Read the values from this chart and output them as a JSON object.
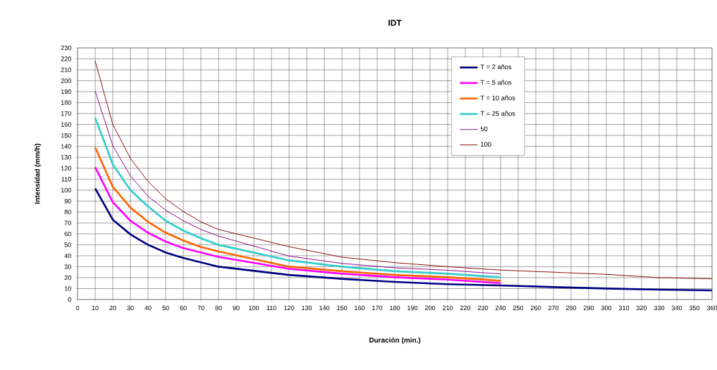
{
  "chart_data": {
    "type": "line",
    "title": "IDT",
    "xlabel": "Duración (min.)",
    "ylabel": "Intensidad (mm/h)",
    "xlim": [
      0,
      360
    ],
    "ylim": [
      0,
      230
    ],
    "xticks": [
      0,
      10,
      20,
      30,
      40,
      50,
      60,
      70,
      80,
      90,
      100,
      110,
      120,
      130,
      140,
      150,
      160,
      170,
      180,
      190,
      200,
      210,
      220,
      230,
      240,
      250,
      260,
      270,
      280,
      290,
      300,
      310,
      320,
      330,
      340,
      350,
      360
    ],
    "yticks": [
      0,
      10,
      20,
      30,
      40,
      50,
      60,
      70,
      80,
      90,
      100,
      110,
      120,
      130,
      140,
      150,
      160,
      170,
      180,
      190,
      200,
      210,
      220,
      230
    ],
    "grid": true,
    "legend": "top right",
    "marker": "none",
    "series": [
      {
        "name": "T = 2 años",
        "color": "#000080",
        "x": [
          10,
          20,
          30,
          40,
          50,
          60,
          70,
          80,
          120,
          150,
          180,
          210,
          240,
          270,
          300,
          330,
          360
        ],
        "values": [
          101.6,
          73,
          59.5,
          50,
          43,
          38,
          34,
          30,
          22.5,
          18.9,
          16.1,
          14,
          12.9,
          11.4,
          10.1,
          9,
          8.4
        ]
      },
      {
        "name": "T = 5 años",
        "color": "#ff00ff",
        "x": [
          10,
          20,
          30,
          40,
          50,
          60,
          70,
          80,
          120,
          150,
          180,
          210,
          240
        ],
        "values": [
          121,
          89,
          72,
          61,
          53,
          47,
          43,
          39,
          28,
          23.6,
          20.4,
          18.2,
          15
        ]
      },
      {
        "name": "T = 10 años",
        "color": "#ff6600",
        "x": [
          10,
          20,
          30,
          40,
          50,
          60,
          70,
          80,
          120,
          150,
          180,
          210,
          240
        ],
        "values": [
          139,
          103,
          84,
          71,
          61,
          54,
          48,
          44,
          30,
          25.8,
          22.5,
          20.4,
          17.2
        ]
      },
      {
        "name": "T = 25 años",
        "color": "#33cccc",
        "x": [
          10,
          20,
          30,
          40,
          50,
          60,
          70,
          80,
          120,
          150,
          180,
          210,
          240
        ],
        "values": [
          166,
          123.5,
          100,
          85,
          72,
          63,
          56,
          50,
          35.8,
          30,
          25.8,
          23.6,
          20.4
        ]
      },
      {
        "name": "50",
        "color": "#800080",
        "x": [
          10,
          20,
          30,
          40,
          50,
          60,
          70,
          80,
          120,
          150,
          180,
          210,
          240
        ],
        "values": [
          190.5,
          140.6,
          113,
          94.5,
          81.6,
          72,
          64,
          58,
          39.7,
          33,
          29,
          26.8,
          23.4
        ]
      },
      {
        "name": "100",
        "color": "#800000",
        "x": [
          10,
          20,
          30,
          40,
          50,
          60,
          70,
          80,
          120,
          150,
          180,
          210,
          240,
          270,
          300,
          330,
          360
        ],
        "values": [
          218,
          160,
          129,
          108,
          92,
          80.5,
          71,
          64,
          48.3,
          38.7,
          33.7,
          30,
          26.9,
          25,
          23,
          20,
          18.9
        ]
      }
    ]
  }
}
